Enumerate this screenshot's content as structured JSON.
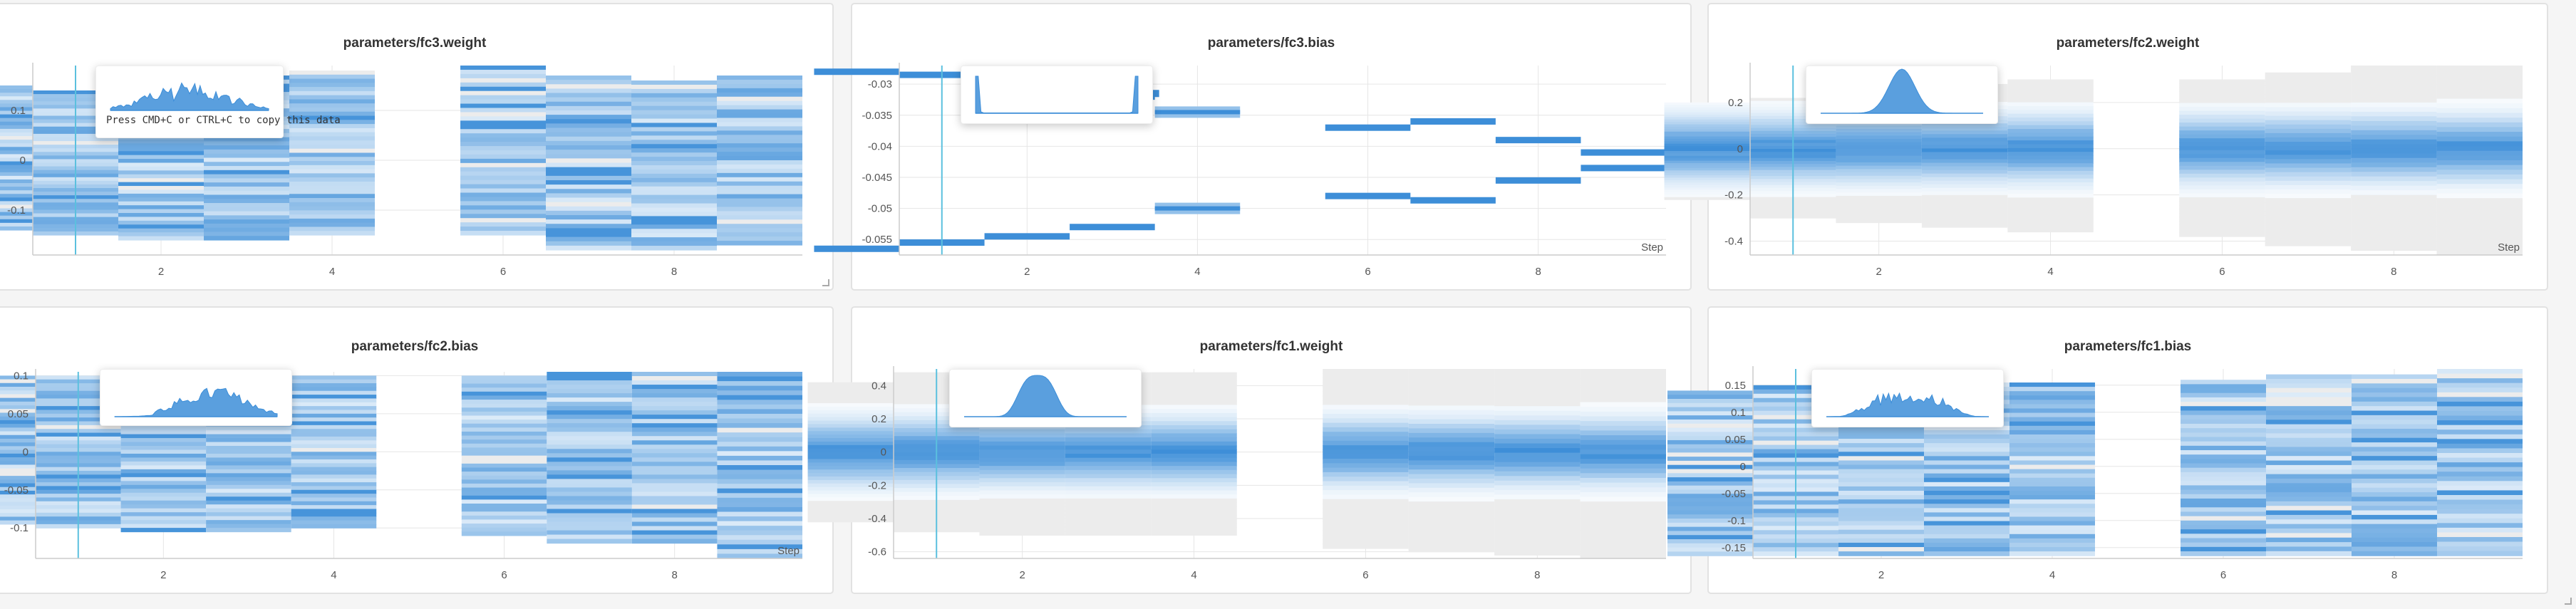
{
  "colors": {
    "accent": "#3d8ed8",
    "cursor": "#5bc0de",
    "grid": "#e6e6e6",
    "axis": "#cccccc",
    "empty": "#ececec"
  },
  "clipboard_hint": "Press CMD+C or CTRL+C to copy this data",
  "chart_data": [
    {
      "type": "heatmap",
      "title": "parameters/fc3.weight",
      "x_ticks": [
        2,
        4,
        6,
        8
      ],
      "y_ticks": [
        "0.1",
        "0",
        "-0.1"
      ],
      "y_tick_values": [
        0.1,
        0,
        -0.1
      ],
      "xlim": [
        0.5,
        9.5
      ],
      "ylim": [
        -0.19,
        0.19
      ],
      "xlabel": "",
      "steps": [
        0,
        1,
        2,
        3,
        4,
        5,
        6,
        7,
        8,
        9
      ],
      "step_range": [
        [
          -0.14,
          0.15
        ],
        [
          -0.15,
          0.14
        ],
        [
          -0.16,
          0.15
        ],
        [
          -0.16,
          0.17
        ],
        [
          -0.15,
          0.18
        ],
        null,
        [
          -0.15,
          0.19
        ],
        [
          -0.18,
          0.17
        ],
        [
          -0.18,
          0.16
        ],
        [
          -0.17,
          0.17
        ]
      ],
      "style": "banded",
      "cursor_x": 1.0,
      "tooltip": {
        "shape": "multimodal",
        "note": true
      }
    },
    {
      "type": "heatmap",
      "title": "parameters/fc3.bias",
      "x_ticks": [
        2,
        4,
        6,
        8
      ],
      "y_ticks": [
        "-0.03",
        "-0.035",
        "-0.04",
        "-0.045",
        "-0.05",
        "-0.055"
      ],
      "y_tick_values": [
        -0.03,
        -0.035,
        -0.04,
        -0.045,
        -0.05,
        -0.055
      ],
      "xlim": [
        0.5,
        9.5
      ],
      "ylim": [
        -0.0575,
        -0.027
      ],
      "xlabel": "Step",
      "steps": [
        0,
        1,
        2,
        3,
        4,
        5,
        6,
        7,
        8,
        9
      ],
      "bias_bins": [
        {
          "step": 0,
          "values": [
            -0.028,
            -0.0565
          ],
          "thick": [
            1,
            1
          ]
        },
        {
          "step": 1,
          "values": [
            -0.0285,
            -0.0555
          ],
          "thick": [
            1,
            1
          ]
        },
        {
          "step": 2,
          "values": [
            -0.0285,
            -0.0545
          ],
          "thick": [
            1,
            1
          ]
        },
        {
          "step": 3,
          "values": [
            -0.032,
            -0.053
          ],
          "thick": [
            1,
            1
          ]
        },
        {
          "step": 4,
          "values": [
            -0.0345,
            -0.05
          ],
          "thick": [
            2,
            2
          ]
        },
        {
          "step": 6,
          "values": [
            -0.037,
            -0.048
          ],
          "thick": [
            1,
            1
          ]
        },
        {
          "step": 7,
          "values": [
            -0.036,
            -0.0487
          ],
          "thick": [
            1,
            1
          ]
        },
        {
          "step": 8,
          "values": [
            -0.039,
            -0.0455
          ],
          "thick": [
            1,
            1
          ]
        },
        {
          "step": 9,
          "values": [
            -0.041,
            -0.0435
          ],
          "thick": [
            1,
            1
          ]
        }
      ],
      "cursor_x": 1.0,
      "tooltip": {
        "shape": "bimodal_edges",
        "note": false
      }
    },
    {
      "type": "heatmap",
      "title": "parameters/fc2.weight",
      "x_ticks": [
        2,
        4,
        6,
        8
      ],
      "y_ticks": [
        "0.2",
        "0",
        "-0.2",
        "-0.4"
      ],
      "y_tick_values": [
        0.2,
        0,
        -0.2,
        -0.4
      ],
      "xlim": [
        0.5,
        9.5
      ],
      "ylim": [
        -0.46,
        0.36
      ],
      "xlabel": "Step",
      "steps": [
        0,
        1,
        2,
        3,
        4,
        5,
        6,
        7,
        8,
        9
      ],
      "step_range": [
        [
          -0.22,
          0.2
        ],
        [
          -0.3,
          0.22
        ],
        [
          -0.32,
          0.26
        ],
        [
          -0.34,
          0.28
        ],
        [
          -0.36,
          0.3
        ],
        null,
        [
          -0.38,
          0.3
        ],
        [
          -0.42,
          0.33
        ],
        [
          -0.44,
          0.36
        ],
        [
          -0.46,
          0.36
        ]
      ],
      "style": "gaussian",
      "cursor_x": 1.0,
      "tooltip": {
        "shape": "gaussian_peak",
        "note": false
      }
    },
    {
      "type": "heatmap",
      "title": "parameters/fc2.bias",
      "x_ticks": [
        2,
        4,
        6,
        8
      ],
      "y_ticks": [
        "0.1",
        "0.05",
        "0",
        "-0.05",
        "-0.1"
      ],
      "y_tick_values": [
        0.1,
        0.05,
        0,
        -0.05,
        -0.1
      ],
      "xlim": [
        0.5,
        9.5
      ],
      "ylim": [
        -0.14,
        0.105
      ],
      "xlabel": "Step",
      "steps": [
        0,
        1,
        2,
        3,
        4,
        5,
        6,
        7,
        8,
        9
      ],
      "step_range": [
        [
          -0.095,
          0.1
        ],
        [
          -0.1,
          0.1
        ],
        [
          -0.105,
          0.1
        ],
        [
          -0.105,
          0.1
        ],
        [
          -0.1,
          0.1
        ],
        null,
        [
          -0.11,
          0.1
        ],
        [
          -0.12,
          0.105
        ],
        [
          -0.12,
          0.105
        ],
        [
          -0.14,
          0.105
        ]
      ],
      "style": "banded",
      "cursor_x": 1.0,
      "tooltip": {
        "shape": "rising_cluster",
        "note": false
      }
    },
    {
      "type": "heatmap",
      "title": "parameters/fc1.weight",
      "x_ticks": [
        2,
        4,
        6,
        8
      ],
      "y_ticks": [
        "0.4",
        "0.2",
        "0",
        "-0.2",
        "-0.4",
        "-0.6"
      ],
      "y_tick_values": [
        0.4,
        0.2,
        0,
        -0.2,
        -0.4,
        -0.6
      ],
      "xlim": [
        0.5,
        9.5
      ],
      "ylim": [
        -0.64,
        0.5
      ],
      "xlabel": "",
      "steps": [
        0,
        1,
        2,
        3,
        4,
        5,
        6,
        7,
        8,
        9
      ],
      "step_range": [
        [
          -0.42,
          0.42
        ],
        [
          -0.48,
          0.48
        ],
        [
          -0.5,
          0.48
        ],
        [
          -0.5,
          0.48
        ],
        [
          -0.5,
          0.48
        ],
        null,
        [
          -0.58,
          0.5
        ],
        [
          -0.6,
          0.5
        ],
        [
          -0.62,
          0.5
        ],
        [
          -0.64,
          0.5
        ]
      ],
      "style": "gaussian",
      "cursor_x": 1.0,
      "tooltip": {
        "shape": "gaussian_wide",
        "note": false
      }
    },
    {
      "type": "heatmap",
      "title": "parameters/fc1.bias",
      "x_ticks": [
        2,
        4,
        6,
        8
      ],
      "y_ticks": [
        "0.15",
        "0.1",
        "0.05",
        "0",
        "-0.05",
        "-0.1",
        "-0.15"
      ],
      "y_tick_values": [
        0.15,
        0.1,
        0.05,
        0,
        -0.05,
        -0.1,
        -0.15
      ],
      "xlim": [
        0.5,
        9.5
      ],
      "ylim": [
        -0.17,
        0.18
      ],
      "xlabel": "",
      "steps": [
        0,
        1,
        2,
        3,
        4,
        5,
        6,
        7,
        8,
        9
      ],
      "step_range": [
        [
          -0.165,
          0.14
        ],
        [
          -0.165,
          0.15
        ],
        [
          -0.165,
          0.155
        ],
        [
          -0.165,
          0.155
        ],
        [
          -0.165,
          0.155
        ],
        null,
        [
          -0.165,
          0.16
        ],
        [
          -0.165,
          0.17
        ],
        [
          -0.165,
          0.17
        ],
        [
          -0.165,
          0.18
        ]
      ],
      "style": "banded",
      "cursor_x": 1.0,
      "tooltip": {
        "shape": "flat_cluster",
        "note": false
      }
    }
  ]
}
